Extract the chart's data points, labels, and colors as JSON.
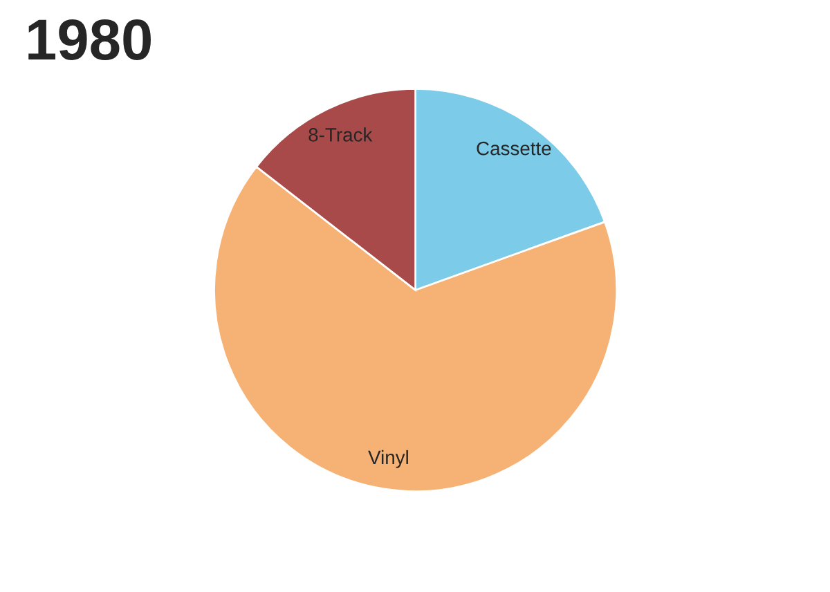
{
  "chart_data": {
    "type": "pie",
    "title": "1980",
    "categories": [
      "Cassette",
      "Vinyl",
      "8-Track"
    ],
    "values": [
      19.5,
      66,
      14.5
    ],
    "colors": [
      "#7ccbe8",
      "#f5b274",
      "#a84a4a"
    ]
  }
}
